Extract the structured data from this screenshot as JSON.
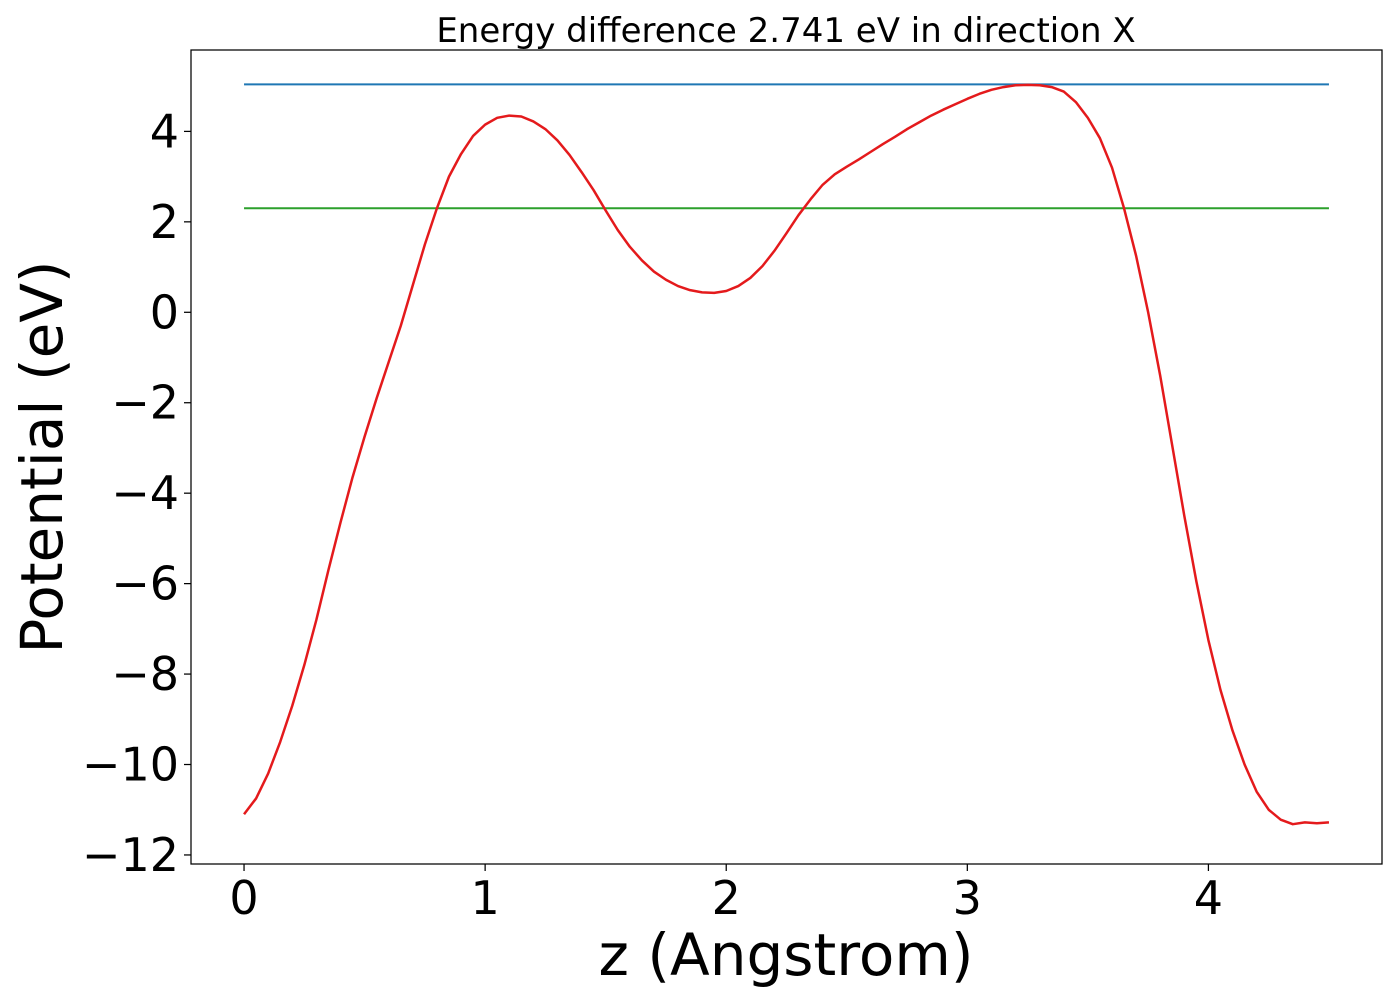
{
  "chart_data": {
    "type": "line",
    "title": "Energy difference 2.741 eV in direction X",
    "xlabel": "z (Angstrom)",
    "ylabel": "Potential (eV)",
    "xlim": [
      -0.22,
      4.72
    ],
    "ylim": [
      -12.2,
      5.8
    ],
    "x_ticks": [
      0,
      1,
      2,
      3,
      4
    ],
    "y_ticks": [
      -12,
      -10,
      -8,
      -6,
      -4,
      -2,
      0,
      2,
      4
    ],
    "x_tick_labels": [
      "0",
      "1",
      "2",
      "3",
      "4"
    ],
    "y_tick_labels": [
      "−12",
      "−10",
      "−8",
      "−6",
      "−4",
      "−2",
      "0",
      "2",
      "4"
    ],
    "grid": false,
    "series": [
      {
        "color": "#1f77b4",
        "x": [
          0,
          4.5
        ],
        "y": [
          5.04,
          5.04
        ]
      },
      {
        "color": "#2ca02c",
        "x": [
          0,
          4.5
        ],
        "y": [
          2.3,
          2.3
        ]
      },
      {
        "color": "#e41a1c",
        "x": [
          0,
          0.05,
          0.1,
          0.15,
          0.2,
          0.25,
          0.3,
          0.35,
          0.4,
          0.45,
          0.5,
          0.55,
          0.6,
          0.65,
          0.7,
          0.75,
          0.8,
          0.85,
          0.9,
          0.95,
          1.0,
          1.05,
          1.1,
          1.15,
          1.2,
          1.25,
          1.3,
          1.35,
          1.4,
          1.45,
          1.5,
          1.55,
          1.6,
          1.65,
          1.7,
          1.75,
          1.8,
          1.85,
          1.9,
          1.95,
          2.0,
          2.05,
          2.1,
          2.15,
          2.2,
          2.25,
          2.3,
          2.35,
          2.4,
          2.45,
          2.5,
          2.55,
          2.6,
          2.65,
          2.7,
          2.75,
          2.8,
          2.85,
          2.9,
          2.95,
          3.0,
          3.05,
          3.1,
          3.15,
          3.2,
          3.25,
          3.3,
          3.35,
          3.4,
          3.45,
          3.5,
          3.55,
          3.6,
          3.65,
          3.7,
          3.75,
          3.8,
          3.85,
          3.9,
          3.95,
          4.0,
          4.05,
          4.1,
          4.15,
          4.2,
          4.25,
          4.3,
          4.35,
          4.4,
          4.45,
          4.5
        ],
        "y": [
          -11.1,
          -10.75,
          -10.2,
          -9.5,
          -8.7,
          -7.8,
          -6.8,
          -5.7,
          -4.65,
          -3.65,
          -2.75,
          -1.9,
          -1.1,
          -0.3,
          0.6,
          1.5,
          2.3,
          3.0,
          3.5,
          3.9,
          4.15,
          4.3,
          4.35,
          4.33,
          4.22,
          4.05,
          3.8,
          3.48,
          3.1,
          2.7,
          2.25,
          1.82,
          1.45,
          1.15,
          0.9,
          0.72,
          0.58,
          0.49,
          0.44,
          0.43,
          0.47,
          0.58,
          0.76,
          1.02,
          1.36,
          1.75,
          2.15,
          2.5,
          2.82,
          3.05,
          3.22,
          3.38,
          3.55,
          3.72,
          3.88,
          4.05,
          4.2,
          4.35,
          4.48,
          4.6,
          4.72,
          4.83,
          4.92,
          4.98,
          5.02,
          5.03,
          5.02,
          4.98,
          4.88,
          4.65,
          4.3,
          3.85,
          3.2,
          2.3,
          1.25,
          0.0,
          -1.4,
          -2.95,
          -4.5,
          -5.95,
          -7.25,
          -8.35,
          -9.25,
          -10.0,
          -10.6,
          -11.0,
          -11.22,
          -11.32,
          -11.28,
          -11.3,
          -11.28
        ]
      }
    ]
  }
}
